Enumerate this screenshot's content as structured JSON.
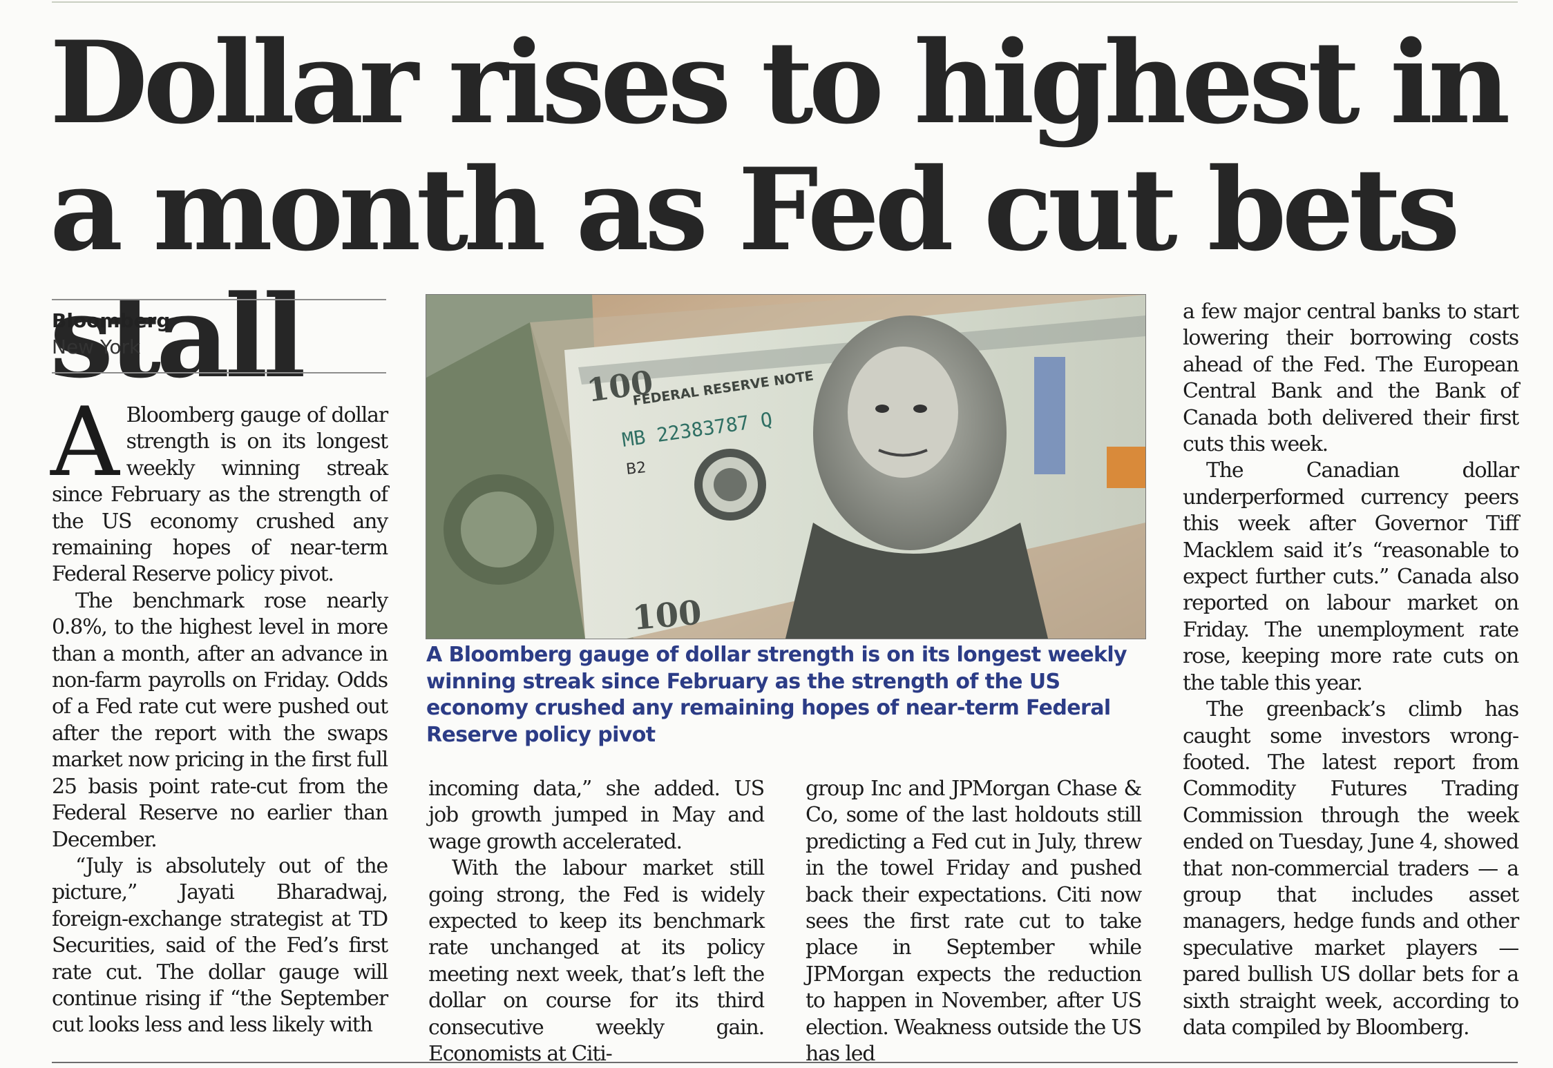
{
  "headline": "Dollar rises to highest in a month as Fed cut bets stall",
  "byline": {
    "source": "Bloomberg",
    "place": "New York"
  },
  "dropcap": "A",
  "photo": {
    "note_top": "FEDERAL RESERVE NOTE",
    "serial": "MB 22383787 Q",
    "plate": "B2",
    "denomination": "100"
  },
  "caption": "A Bloomberg gauge of dollar strength is on its longest weekly winning streak since February as the strength of the US economy crushed any remaining hopes of near-term Federal Reserve policy pivot",
  "columns": {
    "col1": [
      "Bloomberg gauge of dollar strength is on its longest weekly winning streak since February as the strength of the US economy crushed any remaining hopes of near-term Federal Reserve policy pivot.",
      "The benchmark rose nearly 0.8%, to the highest level in more than a month, after an advance in non-farm payrolls on Friday. Odds of a Fed rate cut were pushed out after the report with the swaps market now pricing in the first full 25 basis point rate-cut from the Federal Reserve no earlier than December.",
      "“July is absolutely out of the picture,” Jayati Bharadwaj, foreign-exchange strategist at TD Securities, said of the Fed’s first rate cut. The dollar gauge will continue rising if “the September cut looks less and less likely with"
    ],
    "col2": [
      "incoming data,” she added. US job growth jumped in May and wage growth accelerated.",
      "With the labour market still going strong, the Fed is widely expected to keep its benchmark rate unchanged at its policy meeting next week, that’s left the dollar on course for its third consecutive weekly gain. Economists at Citi-"
    ],
    "col3": [
      "group Inc and JPMorgan Chase & Co, some of the last holdouts still predicting a Fed cut in July, threw in the towel Friday and pushed back their expectations. Citi now sees the first rate cut to take place in September while JPMorgan expects the reduction to happen in November, after US election. Weakness outside the US has led"
    ],
    "col4": [
      "a few major central banks to start lowering their borrowing costs ahead of the Fed. The European Central Bank and the Bank of Canada both delivered their first cuts this week.",
      "The Canadian dollar underperformed currency peers this week after Governor Tiff Macklem said it’s “reasonable to expect further cuts.” Canada also reported on labour market on Friday. The unemployment rate rose, keeping more rate cuts on the table this year.",
      "The greenback’s climb has caught some investors wrong-footed. The latest report from Commodity Futures Trading Commission through the week ended on Tuesday, June 4, showed that non-commercial traders — a group that includes asset managers, hedge funds and other speculative market players — pared bullish US dollar bets for a sixth straight week, according to data compiled by Bloomberg."
    ]
  }
}
